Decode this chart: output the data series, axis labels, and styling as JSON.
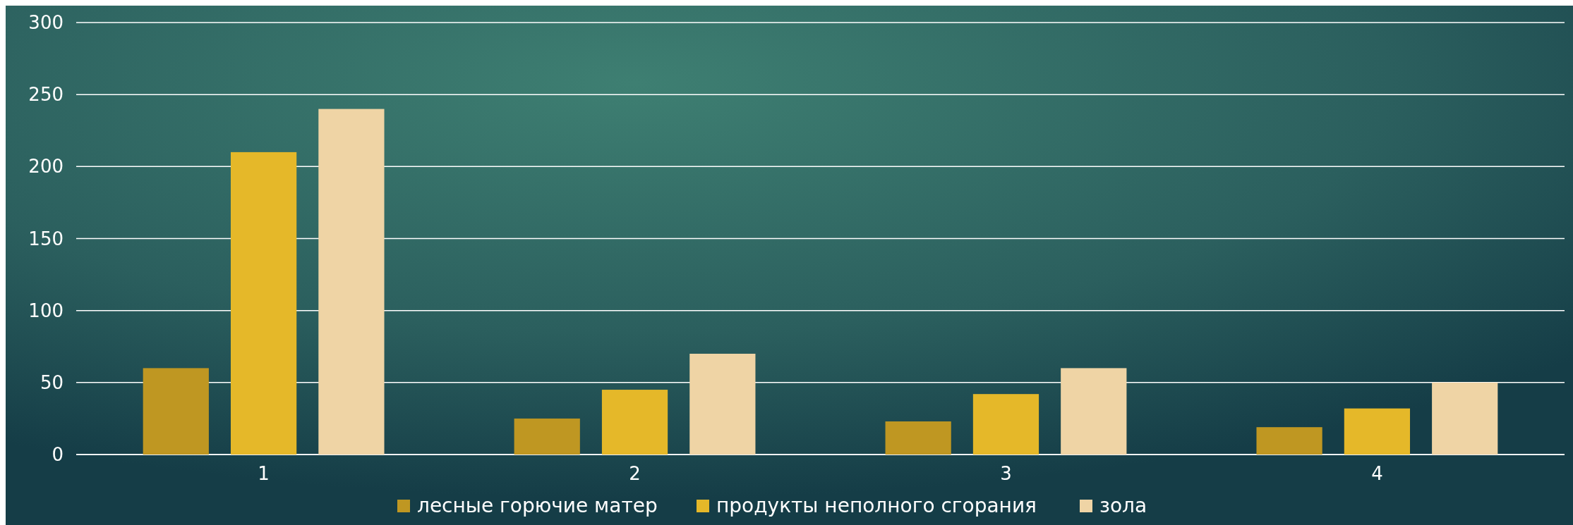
{
  "chart_data": {
    "type": "bar",
    "categories": [
      "1",
      "2",
      "3",
      "4"
    ],
    "series": [
      {
        "name": "лесные горючие матер",
        "color": "#bf9722",
        "values": [
          60,
          25,
          23,
          19
        ]
      },
      {
        "name": "продукты неполного сгорания",
        "color": "#e5b829",
        "values": [
          210,
          45,
          42,
          32
        ]
      },
      {
        "name": "зола",
        "color": "#efd4a5",
        "values": [
          240,
          70,
          60,
          50
        ]
      }
    ],
    "ylim": [
      0,
      300
    ],
    "yticks": [
      0,
      50,
      100,
      150,
      200,
      250,
      300
    ],
    "grid": "y",
    "legend": "bottom"
  }
}
